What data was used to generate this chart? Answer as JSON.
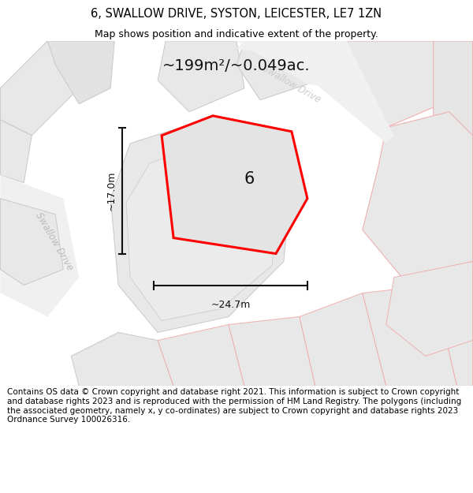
{
  "title": "6, SWALLOW DRIVE, SYSTON, LEICESTER, LE7 1ZN",
  "subtitle": "Map shows position and indicative extent of the property.",
  "area_text": "~199m²/~0.049ac.",
  "dim_width": "~24.7m",
  "dim_height": "~17.0m",
  "property_label": "6",
  "footer": "Contains OS data © Crown copyright and database right 2021. This information is subject to Crown copyright and database rights 2023 and is reproduced with the permission of HM Land Registry. The polygons (including the associated geometry, namely x, y co-ordinates) are subject to Crown copyright and database rights 2023 Ordnance Survey 100026316.",
  "title_fontsize": 10.5,
  "subtitle_fontsize": 9,
  "footer_fontsize": 7.5,
  "map_bg": "#f8f8f8",
  "plot_fill": "#e8e8e8",
  "plot_edge_light": "#f0b0b0",
  "plot_edge_dark": "#c8c8c8",
  "boundary_color": "#ff0000",
  "road_label_color": "#bbbbbb",
  "dim_color": "#111111",
  "text_color": "#111111"
}
